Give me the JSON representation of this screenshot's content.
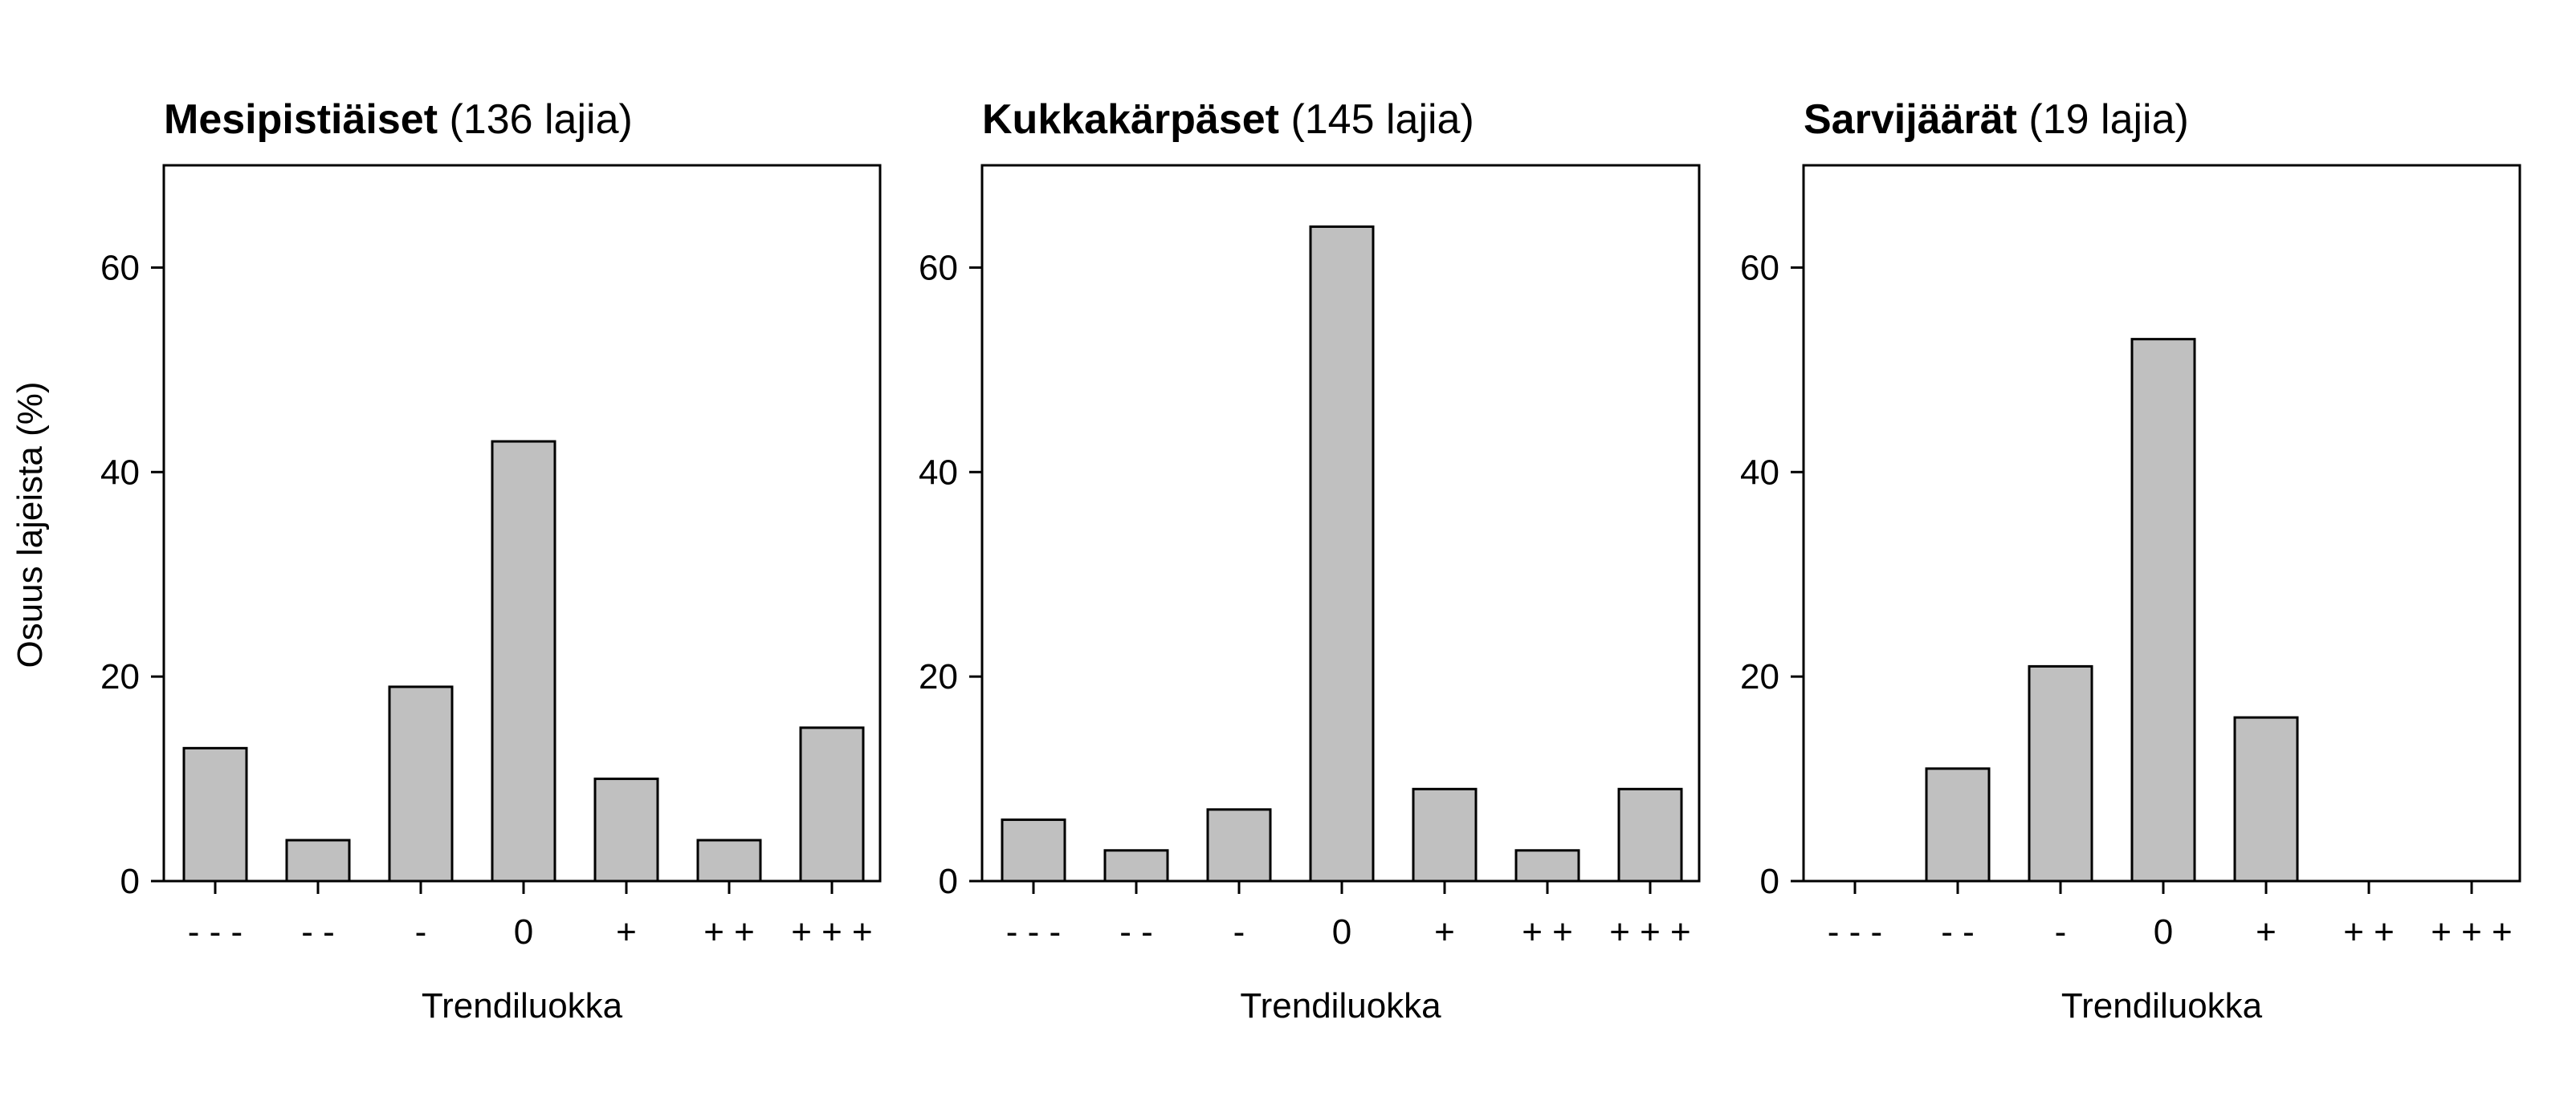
{
  "figure": {
    "ylabel": "Osuus lajeista (%)"
  },
  "chart_data": [
    {
      "type": "bar",
      "title_bold": "Mesipistiäiset",
      "title_rest": " (136 lajia)",
      "xlabel": "Trendiluokka",
      "ylabel": "Osuus lajeista (%)",
      "categories": [
        "- - -",
        "- -",
        "-",
        "0",
        "+",
        "+ +",
        "+ + +"
      ],
      "values": [
        13,
        4,
        19,
        43,
        10,
        4,
        15
      ],
      "ylim": [
        0,
        70
      ],
      "yticks": [
        0,
        20,
        40,
        60
      ],
      "bar_color": "#c0c0c0",
      "grid": false
    },
    {
      "type": "bar",
      "title_bold": "Kukkakärpäset",
      "title_rest": " (145 lajia)",
      "xlabel": "Trendiluokka",
      "categories": [
        "- - -",
        "- -",
        "-",
        "0",
        "+",
        "+ +",
        "+ + +"
      ],
      "values": [
        6,
        3,
        7,
        64,
        9,
        3,
        9
      ],
      "ylim": [
        0,
        70
      ],
      "yticks": [
        0,
        20,
        40,
        60
      ],
      "bar_color": "#c0c0c0",
      "grid": false
    },
    {
      "type": "bar",
      "title_bold": "Sarvijäärät",
      "title_rest": " (19 lajia)",
      "xlabel": "Trendiluokka",
      "categories": [
        "- - -",
        "- -",
        "-",
        "0",
        "+",
        "+ +",
        "+ + +"
      ],
      "values": [
        0,
        11,
        21,
        53,
        16,
        0,
        0
      ],
      "ylim": [
        0,
        70
      ],
      "yticks": [
        0,
        20,
        40,
        60
      ],
      "bar_color": "#c0c0c0",
      "grid": false
    }
  ]
}
